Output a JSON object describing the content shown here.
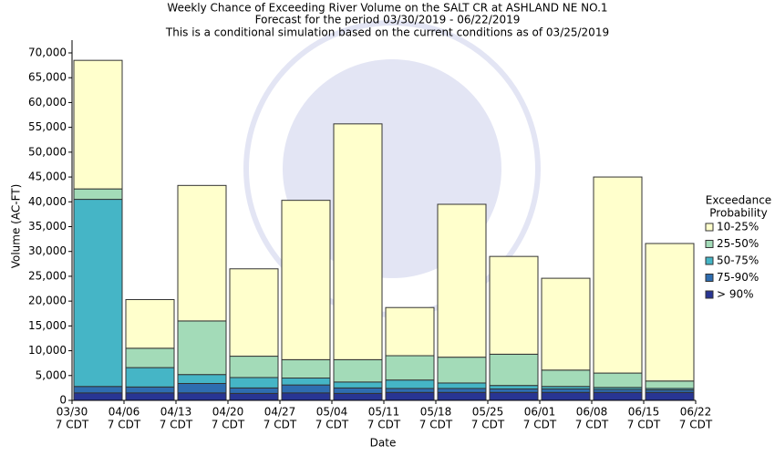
{
  "chart_data": {
    "type": "stacked_bar",
    "title": "Weekly Chance of Exceeding River Volume on the SALT CR at ASHLAND NE NO.1",
    "subtitle": [
      "Forecast for the period 03/30/2019 - 06/22/2019",
      "This is a conditional simulation based on the current conditions as of 03/25/2019"
    ],
    "x_label": "Date",
    "y_label": "Volume (AC-FT)",
    "legend_title": [
      "Exceedance",
      "Probability"
    ],
    "xticks": [
      {
        "date": "03/30",
        "time": "7 CDT"
      },
      {
        "date": "04/06",
        "time": "7 CDT"
      },
      {
        "date": "04/13",
        "time": "7 CDT"
      },
      {
        "date": "04/20",
        "time": "7 CDT"
      },
      {
        "date": "04/27",
        "time": "7 CDT"
      },
      {
        "date": "05/04",
        "time": "7 CDT"
      },
      {
        "date": "05/11",
        "time": "7 CDT"
      },
      {
        "date": "05/18",
        "time": "7 CDT"
      },
      {
        "date": "05/25",
        "time": "7 CDT"
      },
      {
        "date": "06/01",
        "time": "7 CDT"
      },
      {
        "date": "06/08",
        "time": "7 CDT"
      },
      {
        "date": "06/15",
        "time": "7 CDT"
      },
      {
        "date": "06/22",
        "time": "7 CDT"
      }
    ],
    "series": [
      {
        "name": "> 90%",
        "color": "#283593",
        "values": [
          1500,
          1500,
          1500,
          1400,
          1500,
          1400,
          1600,
          1600,
          1600,
          1600,
          1600,
          1600
        ]
      },
      {
        "name": "75-90%",
        "color": "#2e6db0",
        "values": [
          1300,
          1200,
          1900,
          1100,
          1600,
          1100,
          800,
          800,
          700,
          700,
          600,
          500
        ]
      },
      {
        "name": "50-75%",
        "color": "#45b5c6",
        "values": [
          37700,
          3900,
          1800,
          2100,
          1400,
          1200,
          1700,
          1100,
          700,
          500,
          400,
          300
        ]
      },
      {
        "name": "25-50%",
        "color": "#a3dbb8",
        "values": [
          2100,
          3900,
          10800,
          4300,
          3700,
          4500,
          4900,
          5200,
          6300,
          3300,
          2900,
          1500
        ]
      },
      {
        "name": "10-25%",
        "color": "#ffffcc",
        "values": [
          25900,
          9800,
          27300,
          17600,
          32100,
          47500,
          9700,
          30800,
          19700,
          18500,
          39500,
          27700
        ]
      }
    ],
    "ylim": [
      0,
      70000
    ],
    "yticks": [
      0,
      {
        "value": 5000,
        "label": "5,000"
      },
      {
        "value": 10000,
        "label": "10,000"
      },
      {
        "value": 15000,
        "label": "15,000"
      },
      {
        "value": 20000,
        "label": "20,000"
      },
      {
        "value": 25000,
        "label": "25,000"
      },
      {
        "value": 30000,
        "label": "30,000"
      },
      {
        "value": 35000,
        "label": "35,000"
      },
      {
        "value": 40000,
        "label": "40,000"
      },
      {
        "value": 45000,
        "label": "45,000"
      },
      {
        "value": 50000,
        "label": "50,000"
      },
      {
        "value": 55000,
        "label": "55,000"
      },
      {
        "value": 60000,
        "label": "60,000"
      },
      {
        "value": 65000,
        "label": "65,000"
      },
      {
        "value": 70000,
        "label": "70,000"
      }
    ],
    "grid": false
  }
}
